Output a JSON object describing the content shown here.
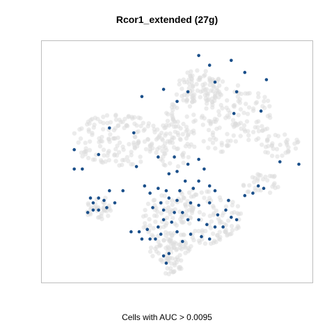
{
  "title": "Rcor1_extended (27g)",
  "caption": "Cells with AUC > 0.0095",
  "colors": {
    "background_cells": "#dcdcdc",
    "active_cells": "#1a4f8a",
    "frame": "#bdbdbd"
  },
  "chart_data": {
    "type": "scatter",
    "grid": false,
    "legend": "none",
    "xlim": [
      0,
      100
    ],
    "ylim": [
      0,
      100
    ],
    "background_regions": [
      {
        "cx": 65,
        "cy": 70,
        "rx": 20,
        "ry": 16,
        "n": 190
      },
      {
        "cx": 58,
        "cy": 80,
        "rx": 9,
        "ry": 8,
        "n": 60
      },
      {
        "cx": 28,
        "cy": 59,
        "rx": 17,
        "ry": 11,
        "n": 150
      },
      {
        "cx": 49,
        "cy": 57,
        "rx": 7,
        "ry": 10,
        "n": 60
      },
      {
        "cx": 55,
        "cy": 27,
        "rx": 19,
        "ry": 12,
        "n": 190
      },
      {
        "cx": 47,
        "cy": 13,
        "rx": 8,
        "ry": 5,
        "n": 50
      },
      {
        "cx": 21,
        "cy": 31,
        "rx": 5,
        "ry": 5,
        "n": 35
      },
      {
        "cx": 88,
        "cy": 57,
        "rx": 7,
        "ry": 5,
        "n": 35
      },
      {
        "cx": 81,
        "cy": 41,
        "rx": 7,
        "ry": 5,
        "n": 30
      },
      {
        "cx": 48,
        "cy": 7,
        "rx": 4,
        "ry": 4,
        "n": 20
      }
    ],
    "active_points": [
      {
        "x": 58,
        "y": 94
      },
      {
        "x": 62,
        "y": 90
      },
      {
        "x": 70,
        "y": 92
      },
      {
        "x": 75,
        "y": 87
      },
      {
        "x": 83,
        "y": 84
      },
      {
        "x": 64,
        "y": 83
      },
      {
        "x": 54,
        "y": 79
      },
      {
        "x": 45,
        "y": 80
      },
      {
        "x": 37,
        "y": 77
      },
      {
        "x": 50,
        "y": 75
      },
      {
        "x": 72,
        "y": 79
      },
      {
        "x": 71,
        "y": 70
      },
      {
        "x": 81,
        "y": 71
      },
      {
        "x": 25,
        "y": 64
      },
      {
        "x": 34,
        "y": 62
      },
      {
        "x": 12,
        "y": 55
      },
      {
        "x": 21,
        "y": 53
      },
      {
        "x": 43,
        "y": 52
      },
      {
        "x": 35,
        "y": 48
      },
      {
        "x": 12,
        "y": 47
      },
      {
        "x": 15,
        "y": 47
      },
      {
        "x": 88,
        "y": 50
      },
      {
        "x": 95,
        "y": 49
      },
      {
        "x": 80,
        "y": 40
      },
      {
        "x": 82,
        "y": 39
      },
      {
        "x": 78,
        "y": 37
      },
      {
        "x": 75,
        "y": 36
      },
      {
        "x": 49,
        "y": 52
      },
      {
        "x": 47,
        "y": 45
      },
      {
        "x": 50,
        "y": 46
      },
      {
        "x": 54,
        "y": 49
      },
      {
        "x": 58,
        "y": 51
      },
      {
        "x": 60,
        "y": 47
      },
      {
        "x": 53,
        "y": 42
      },
      {
        "x": 58,
        "y": 42
      },
      {
        "x": 62,
        "y": 40
      },
      {
        "x": 38,
        "y": 40
      },
      {
        "x": 43,
        "y": 39
      },
      {
        "x": 40,
        "y": 37
      },
      {
        "x": 46,
        "y": 38
      },
      {
        "x": 51,
        "y": 38
      },
      {
        "x": 56,
        "y": 39
      },
      {
        "x": 64,
        "y": 38
      },
      {
        "x": 69,
        "y": 34
      },
      {
        "x": 68,
        "y": 30
      },
      {
        "x": 65,
        "y": 28
      },
      {
        "x": 70,
        "y": 27
      },
      {
        "x": 72,
        "y": 26
      },
      {
        "x": 62,
        "y": 33
      },
      {
        "x": 58,
        "y": 32
      },
      {
        "x": 55,
        "y": 33
      },
      {
        "x": 50,
        "y": 34
      },
      {
        "x": 47,
        "y": 35
      },
      {
        "x": 44,
        "y": 33
      },
      {
        "x": 41,
        "y": 31
      },
      {
        "x": 45,
        "y": 30
      },
      {
        "x": 49,
        "y": 29
      },
      {
        "x": 52,
        "y": 29
      },
      {
        "x": 54,
        "y": 26
      },
      {
        "x": 58,
        "y": 26
      },
      {
        "x": 61,
        "y": 24
      },
      {
        "x": 64,
        "y": 23
      },
      {
        "x": 67,
        "y": 23
      },
      {
        "x": 48,
        "y": 25
      },
      {
        "x": 45,
        "y": 26
      },
      {
        "x": 43,
        "y": 23
      },
      {
        "x": 39,
        "y": 22
      },
      {
        "x": 36,
        "y": 21
      },
      {
        "x": 33,
        "y": 21
      },
      {
        "x": 37,
        "y": 18
      },
      {
        "x": 40,
        "y": 18
      },
      {
        "x": 42,
        "y": 18
      },
      {
        "x": 44,
        "y": 20
      },
      {
        "x": 50,
        "y": 21
      },
      {
        "x": 55,
        "y": 20
      },
      {
        "x": 59,
        "y": 19
      },
      {
        "x": 62,
        "y": 18
      },
      {
        "x": 52,
        "y": 17
      },
      {
        "x": 47,
        "y": 12
      },
      {
        "x": 45,
        "y": 11
      },
      {
        "x": 46,
        "y": 8
      },
      {
        "x": 25,
        "y": 38
      },
      {
        "x": 27,
        "y": 33
      },
      {
        "x": 24,
        "y": 31
      },
      {
        "x": 21,
        "y": 30
      },
      {
        "x": 19,
        "y": 30
      },
      {
        "x": 17,
        "y": 29
      },
      {
        "x": 19,
        "y": 33
      },
      {
        "x": 23,
        "y": 34
      },
      {
        "x": 21,
        "y": 35
      },
      {
        "x": 18,
        "y": 35
      },
      {
        "x": 30,
        "y": 38
      }
    ]
  }
}
